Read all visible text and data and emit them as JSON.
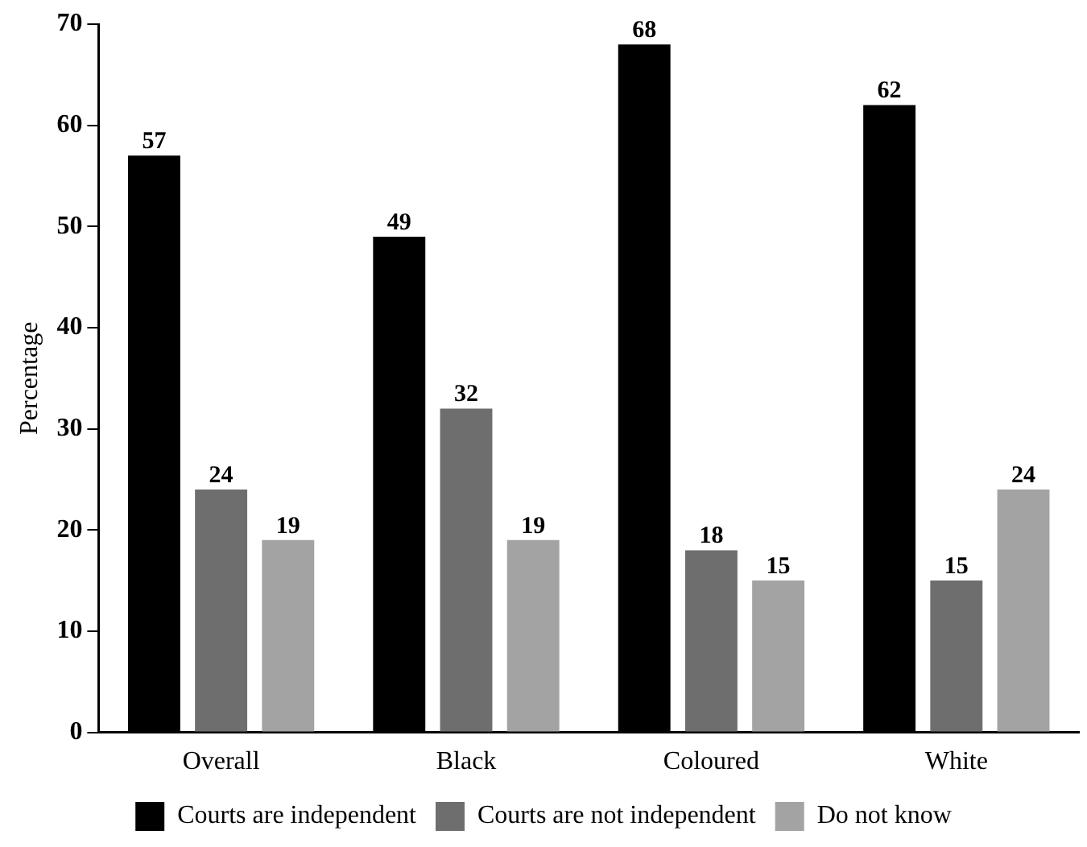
{
  "chart_data": {
    "type": "bar",
    "ylabel": "Percentage",
    "categories": [
      "Overall",
      "Black",
      "Coloured",
      "White"
    ],
    "series": [
      {
        "name": "Courts are independent",
        "color": "#000000",
        "values": [
          57,
          49,
          68,
          62
        ]
      },
      {
        "name": "Courts are not independent",
        "color": "#6e6e6e",
        "values": [
          24,
          32,
          18,
          15
        ]
      },
      {
        "name": "Do not know",
        "color": "#a3a3a3",
        "values": [
          19,
          19,
          15,
          24
        ]
      }
    ],
    "ylim": [
      0,
      70
    ],
    "yticks": [
      0,
      10,
      20,
      30,
      40,
      50,
      60,
      70
    ],
    "grid": false,
    "legend": "bottom",
    "data_labels": true
  }
}
